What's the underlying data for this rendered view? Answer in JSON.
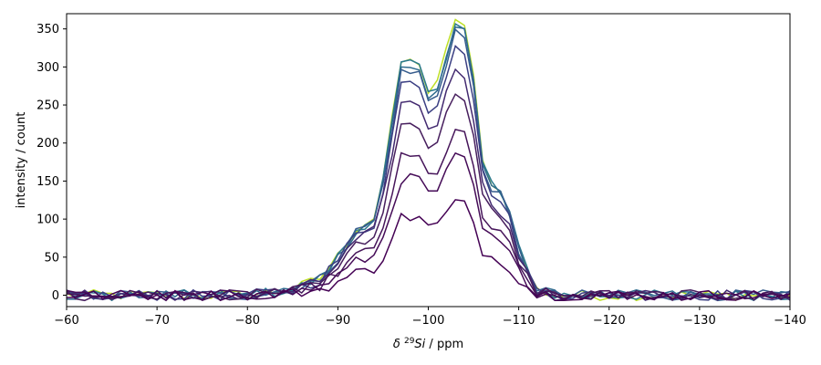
{
  "chart_data": {
    "type": "line",
    "title": "",
    "xlabel_prefix": "δ ",
    "xlabel_sup": "29",
    "xlabel_italic": "Si",
    "xlabel_suffix": " / ppm",
    "ylabel": "intensity / count",
    "xlim": [
      -60,
      -140
    ],
    "ylim": [
      -15,
      370
    ],
    "x_reversed": true,
    "grid": false,
    "legend": "none",
    "xticks": [
      -60,
      -70,
      -80,
      -90,
      -100,
      -110,
      -120,
      -130,
      -140
    ],
    "yticks": [
      0,
      50,
      100,
      150,
      200,
      250,
      300,
      350
    ],
    "colormap": "viridis",
    "peak_profile_x": [
      -60,
      -80,
      -85,
      -88,
      -90,
      -92,
      -94,
      -95,
      -97,
      -99,
      -100,
      -101,
      -103,
      -104,
      -105,
      -106,
      -107,
      -108,
      -109,
      -110,
      -111,
      -112,
      -114,
      -117,
      -140
    ],
    "peak_profile_y": [
      0,
      0,
      2,
      6,
      14,
      24,
      28,
      42,
      84,
      84,
      73,
      76,
      100,
      97,
      78,
      48,
      41,
      37,
      30,
      17,
      9,
      2,
      0,
      0,
      0
    ],
    "series": [
      {
        "scale": 122,
        "color": "#440154"
      },
      {
        "scale": 182,
        "color": "#450b57"
      },
      {
        "scale": 215,
        "color": "#46155a"
      },
      {
        "scale": 268,
        "color": "#471f5e"
      },
      {
        "scale": 300,
        "color": "#432a70"
      },
      {
        "scale": 332,
        "color": "#3b3f83"
      },
      {
        "scale": 348,
        "color": "#365c8d"
      },
      {
        "scale": 355,
        "color": "#2f6b8e"
      },
      {
        "scale": 360,
        "color": "#2a788e"
      },
      {
        "scale": 365,
        "color": "#bddf26"
      }
    ]
  }
}
